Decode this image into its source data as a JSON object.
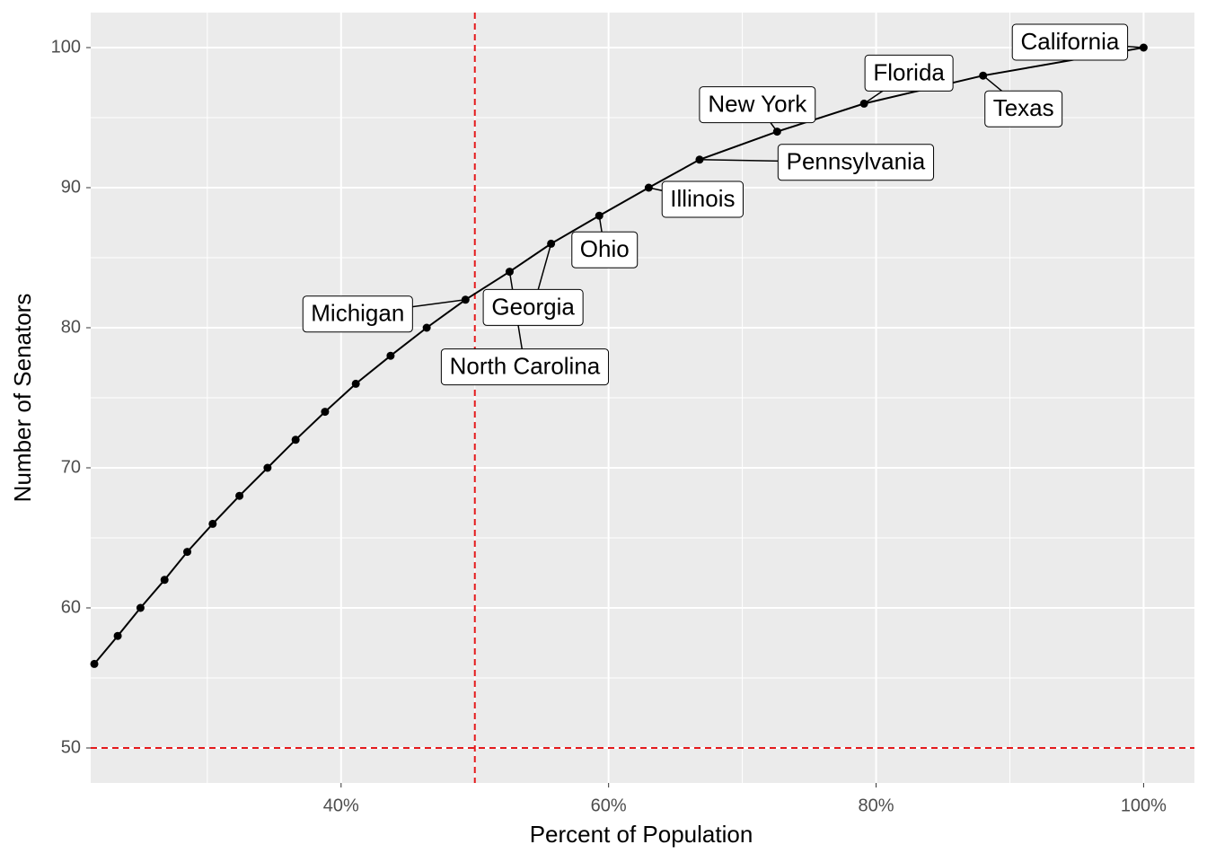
{
  "chart_data": {
    "type": "line",
    "x_label": "Percent of Population",
    "y_label": "Number of Senators",
    "x": [
      21.55,
      23.3,
      25.0,
      26.8,
      28.5,
      30.4,
      32.4,
      34.5,
      36.6,
      38.8,
      41.1,
      43.7,
      46.4,
      49.3,
      52.6,
      55.7,
      59.3,
      63.0,
      66.8,
      72.6,
      79.1,
      88.0,
      100.0
    ],
    "values": [
      56,
      58,
      60,
      62,
      64,
      66,
      68,
      70,
      72,
      74,
      76,
      78,
      80,
      82,
      84,
      86,
      88,
      90,
      92,
      94,
      96,
      98,
      100
    ],
    "point_labels": [
      null,
      null,
      null,
      null,
      null,
      null,
      null,
      null,
      null,
      null,
      null,
      null,
      null,
      "Michigan",
      "North Carolina",
      "Georgia",
      "Ohio",
      "Illinois",
      "Pennsylvania",
      "New York",
      "Florida",
      "Texas",
      "California"
    ],
    "color": "#000000",
    "xlim": [
      21.28,
      103.8
    ],
    "ylim": [
      47.5,
      102.5
    ],
    "xticks": [
      {
        "value": 40,
        "label": "40%"
      },
      {
        "value": 60,
        "label": "60%"
      },
      {
        "value": 80,
        "label": "80%"
      },
      {
        "value": 100,
        "label": "100%"
      }
    ],
    "yticks": [
      50,
      60,
      70,
      80,
      90,
      100
    ],
    "x_minor_ticks": [
      30,
      50,
      70,
      90
    ],
    "y_minor_ticks": [
      55,
      65,
      75,
      85,
      95
    ],
    "reference_lines": {
      "x": 50,
      "y": 50,
      "color": "#e41a1c"
    },
    "grid": true
  }
}
